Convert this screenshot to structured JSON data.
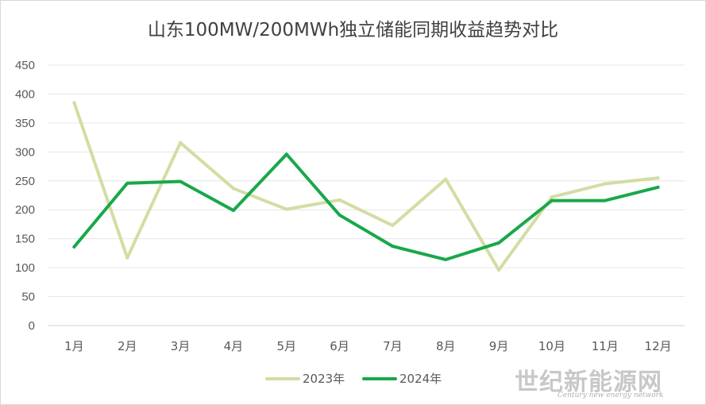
{
  "colors": {
    "series_2023": "#d3dda3",
    "series_2024": "#18a84a",
    "gridline": "#e6e6e6",
    "axis_text": "#595959"
  },
  "chart_data": {
    "type": "line",
    "title": "山东100MW/200MWh独立储能同期收益趋势对比",
    "categories": [
      "1月",
      "2月",
      "3月",
      "4月",
      "5月",
      "6月",
      "7月",
      "8月",
      "9月",
      "10月",
      "11月",
      "12月"
    ],
    "series": [
      {
        "name": "2023年",
        "values": [
          385,
          117,
          316,
          237,
          201,
          217,
          173,
          253,
          96,
          222,
          245,
          255
        ]
      },
      {
        "name": "2024年",
        "values": [
          136,
          246,
          249,
          199,
          296,
          191,
          137,
          114,
          143,
          216,
          216,
          239
        ]
      }
    ],
    "ylim": [
      0,
      450
    ],
    "yticks": [
      0,
      50,
      100,
      150,
      200,
      250,
      300,
      350,
      400,
      450
    ],
    "grid": true,
    "legend": "bottom"
  },
  "watermark": {
    "brand": "世纪新能源网",
    "subtitle": "Century new energy network"
  }
}
